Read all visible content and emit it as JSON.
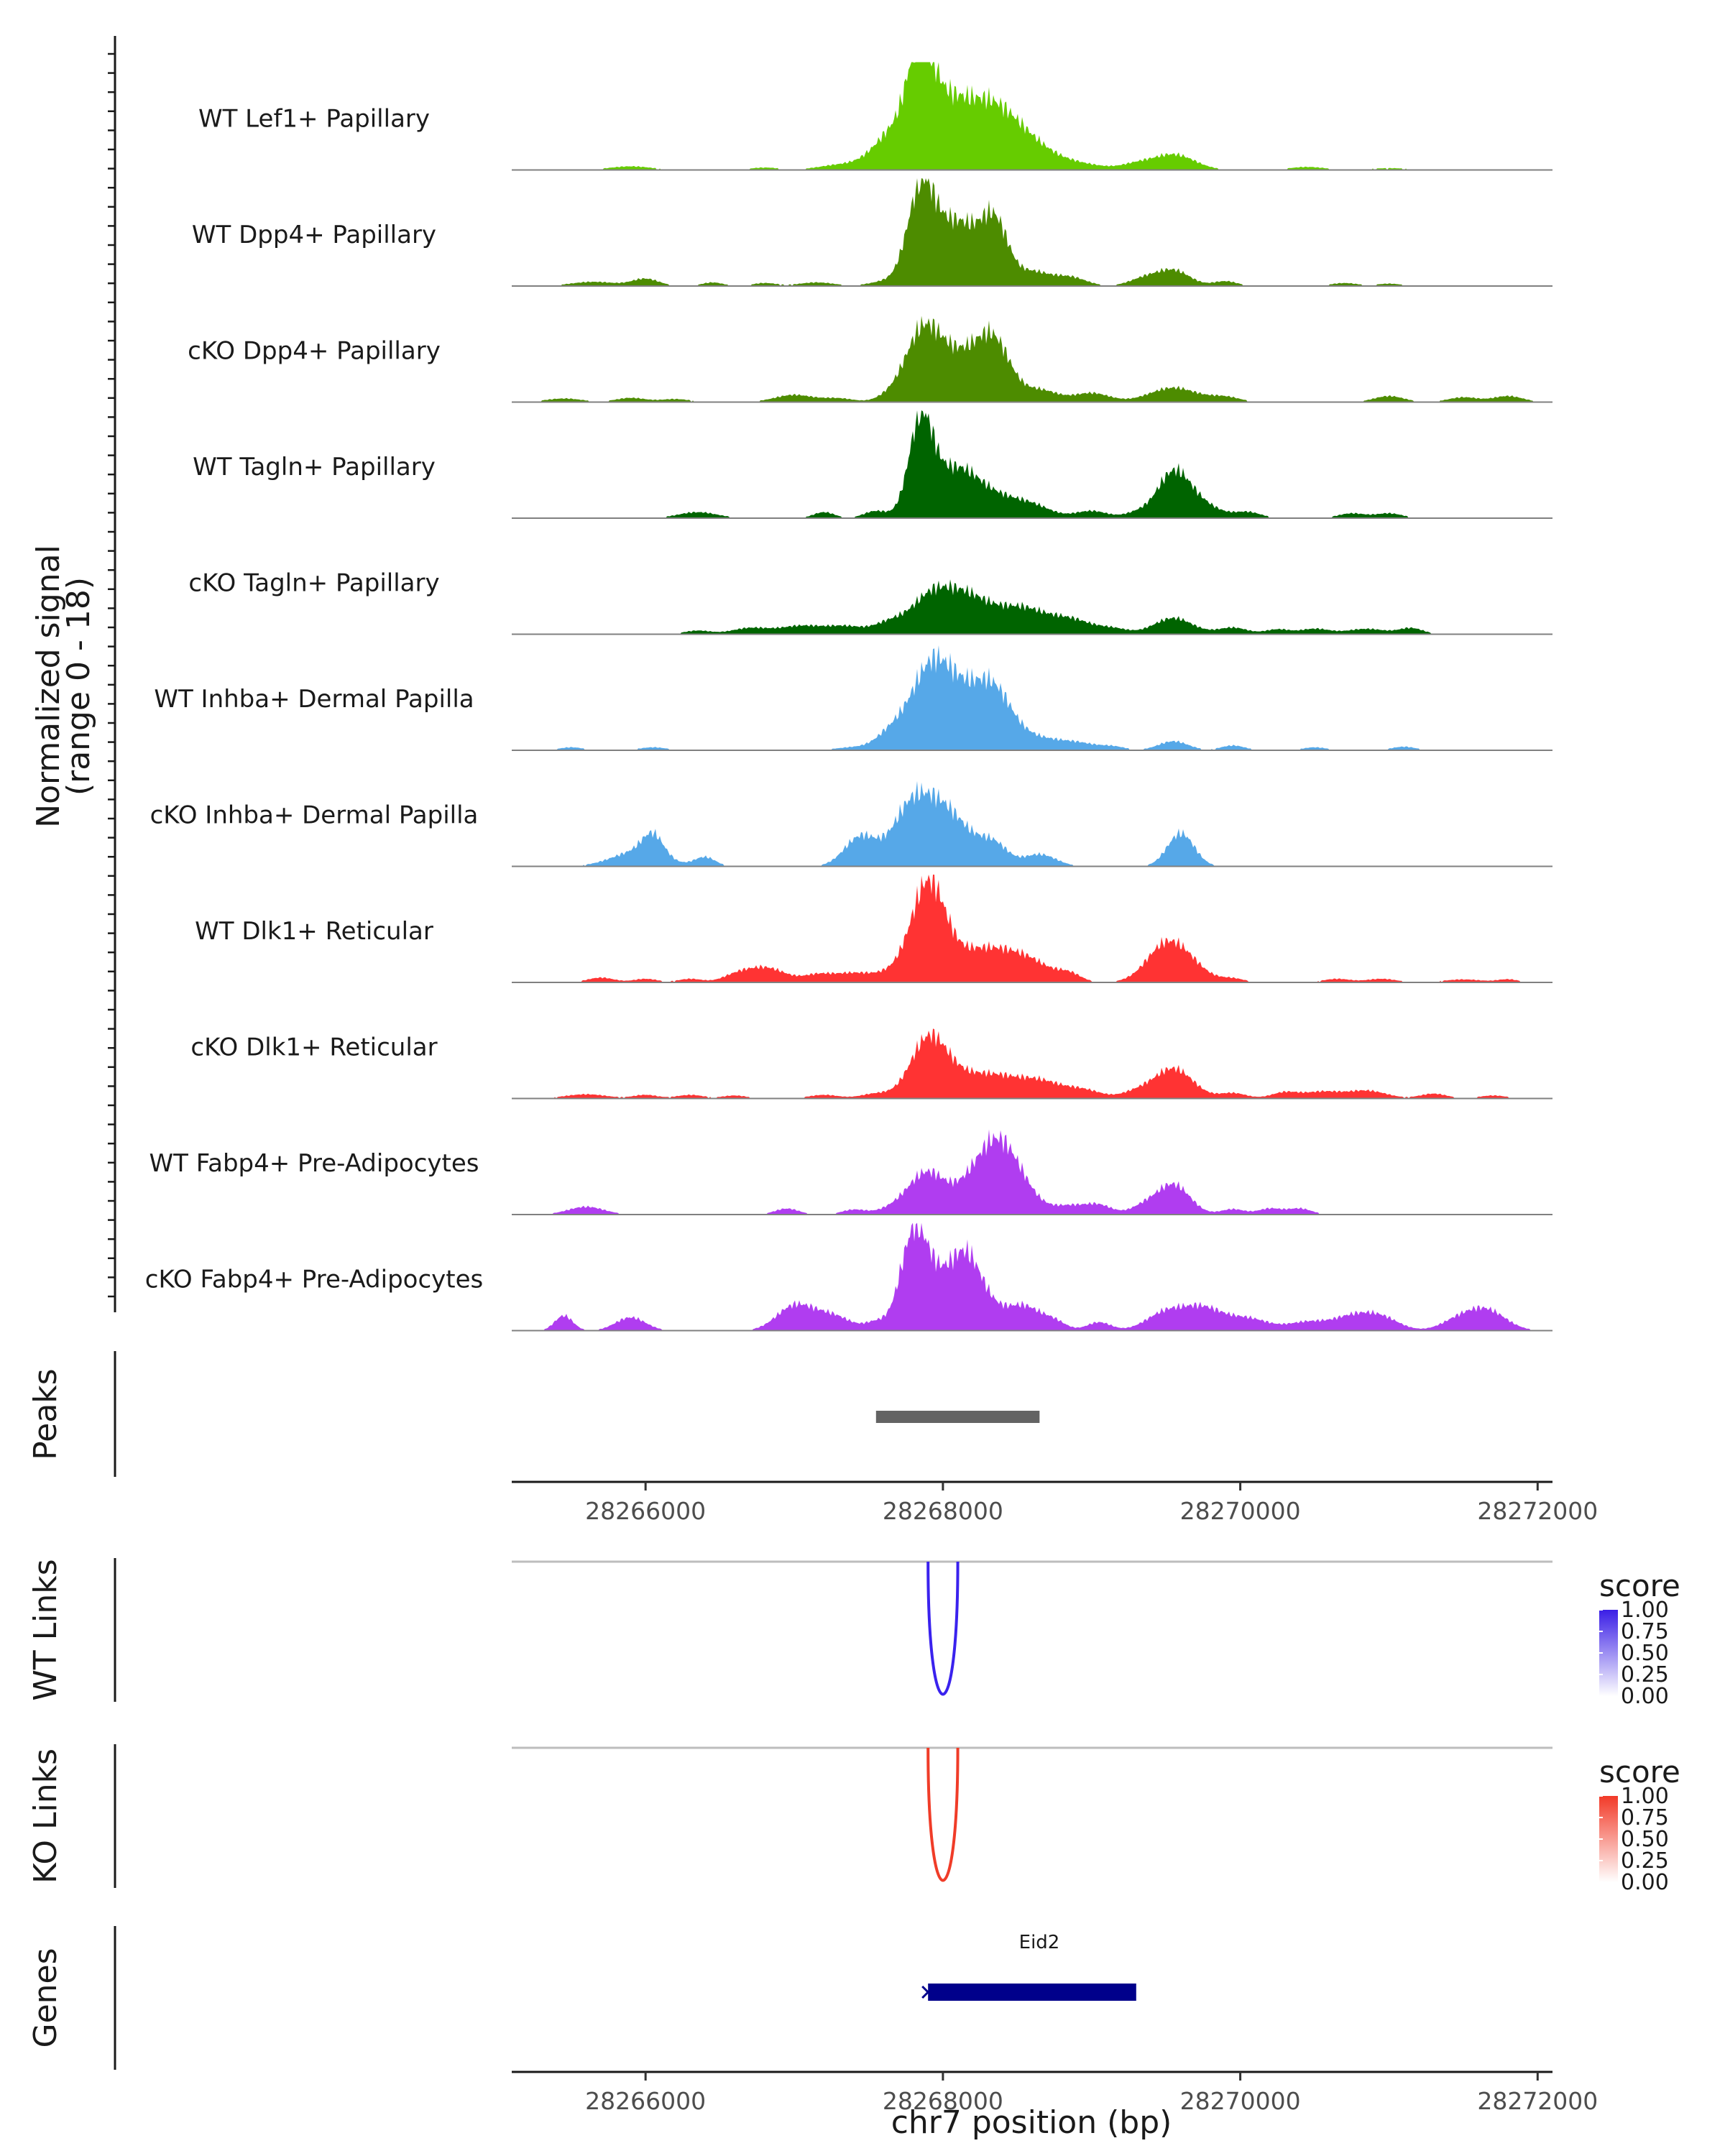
{
  "chart_data": {
    "type": "area",
    "title": "",
    "xlabel": "chr7 position (bp)",
    "xlim": [
      28265100,
      28272100
    ],
    "x_ticks": [
      28266000,
      28268000,
      28270000,
      28272000
    ],
    "x_tick_labels": [
      "28266000",
      "28268000",
      "28270000",
      "28272000"
    ],
    "coverage_ylabel": "Normalized signal",
    "coverage_yrange_label": "(range 0 - 18)",
    "ylim": [
      0,
      18
    ],
    "peaks_label": "Peaks",
    "peaks": [
      {
        "start": 28267550,
        "end": 28268650
      }
    ],
    "series": [
      {
        "name": "WT Lef1+ Papillary",
        "color": "#66cc00",
        "peaks": [
          [
            28265900,
            0.6,
            140
          ],
          [
            28266800,
            0.4,
            100
          ],
          [
            28267300,
            0.8,
            140
          ],
          [
            28267850,
            14.5,
            80
          ],
          [
            28267700,
            7,
            150
          ],
          [
            28268000,
            8,
            130
          ],
          [
            28268200,
            6,
            160
          ],
          [
            28268350,
            5.5,
            150
          ],
          [
            28268550,
            4,
            160
          ],
          [
            28268850,
            1.2,
            200
          ],
          [
            28269550,
            2.6,
            140
          ],
          [
            28269300,
            0.8,
            100
          ],
          [
            28270450,
            0.5,
            120
          ],
          [
            28271000,
            0.3,
            150
          ]
        ]
      },
      {
        "name": "WT Dpp4+ Papillary",
        "color": "#4d8c00",
        "peaks": [
          [
            28265650,
            0.7,
            150
          ],
          [
            28266000,
            1.2,
            90
          ],
          [
            28266450,
            0.6,
            70
          ],
          [
            28266800,
            0.5,
            80
          ],
          [
            28267150,
            0.6,
            120
          ],
          [
            28267600,
            0.7,
            100
          ],
          [
            28267850,
            14,
            90
          ],
          [
            28268000,
            6,
            140
          ],
          [
            28268150,
            6.5,
            120
          ],
          [
            28268350,
            10,
            90
          ],
          [
            28268600,
            2.3,
            110
          ],
          [
            28268850,
            1.5,
            110
          ],
          [
            28269350,
            1.2,
            100
          ],
          [
            28269550,
            2.6,
            110
          ],
          [
            28269900,
            0.8,
            80
          ],
          [
            28270700,
            0.5,
            90
          ],
          [
            28271000,
            0.4,
            80
          ]
        ]
      },
      {
        "name": "cKO Dpp4+ Papillary",
        "color": "#4d8c00",
        "peaks": [
          [
            28265450,
            0.6,
            120
          ],
          [
            28265900,
            0.7,
            100
          ],
          [
            28266200,
            0.5,
            100
          ],
          [
            28267000,
            1.2,
            130
          ],
          [
            28267300,
            0.6,
            100
          ],
          [
            28267650,
            1.0,
            90
          ],
          [
            28267850,
            9,
            110
          ],
          [
            28268000,
            6,
            140
          ],
          [
            28268200,
            4.5,
            130
          ],
          [
            28268350,
            8.5,
            110
          ],
          [
            28268650,
            2,
            120
          ],
          [
            28269000,
            1.5,
            120
          ],
          [
            28269550,
            2.4,
            160
          ],
          [
            28269900,
            0.8,
            100
          ],
          [
            28271000,
            1.0,
            100
          ],
          [
            28271500,
            0.8,
            100
          ],
          [
            28271800,
            1,
            100
          ]
        ]
      },
      {
        "name": "WT Tagln+ Papillary",
        "color": "#006400",
        "peaks": [
          [
            28266350,
            1,
            130
          ],
          [
            28267200,
            1,
            70
          ],
          [
            28267550,
            1.2,
            80
          ],
          [
            28267850,
            15,
            80
          ],
          [
            28268000,
            5,
            130
          ],
          [
            28268150,
            4.5,
            120
          ],
          [
            28268350,
            3.2,
            140
          ],
          [
            28268600,
            2,
            130
          ],
          [
            28269000,
            1.2,
            110
          ],
          [
            28269300,
            0.8,
            80
          ],
          [
            28269550,
            7.5,
            110
          ],
          [
            28269750,
            2,
            120
          ],
          [
            28270050,
            1,
            90
          ],
          [
            28270750,
            0.8,
            90
          ],
          [
            28271000,
            0.8,
            90
          ]
        ]
      },
      {
        "name": "cKO Tagln+ Papillary",
        "color": "#006400",
        "peaks": [
          [
            28266350,
            0.6,
            90
          ],
          [
            28266700,
            1.0,
            120
          ],
          [
            28267050,
            1.4,
            150
          ],
          [
            28267350,
            1.2,
            120
          ],
          [
            28267650,
            2,
            110
          ],
          [
            28267900,
            5,
            120
          ],
          [
            28268100,
            5.2,
            140
          ],
          [
            28268300,
            3,
            150
          ],
          [
            28268550,
            3.5,
            140
          ],
          [
            28268850,
            2.5,
            150
          ],
          [
            28269150,
            0.8,
            100
          ],
          [
            28269550,
            2.7,
            130
          ],
          [
            28269950,
            1.1,
            100
          ],
          [
            28270250,
            0.8,
            80
          ],
          [
            28270500,
            0.9,
            100
          ],
          [
            28270850,
            0.9,
            130
          ],
          [
            28271150,
            1,
            80
          ]
        ]
      },
      {
        "name": "WT Inhba+ Dermal Papilla",
        "color": "#56a8e8",
        "peaks": [
          [
            28265500,
            0.5,
            80
          ],
          [
            28266050,
            0.5,
            90
          ],
          [
            28267400,
            0.5,
            120
          ],
          [
            28267650,
            2.6,
            100
          ],
          [
            28267900,
            11.5,
            130
          ],
          [
            28268050,
            5,
            130
          ],
          [
            28268200,
            5,
            140
          ],
          [
            28268350,
            7.5,
            120
          ],
          [
            28268600,
            2,
            150
          ],
          [
            28268900,
            1.2,
            140
          ],
          [
            28269150,
            0.5,
            80
          ],
          [
            28269550,
            1.5,
            100
          ],
          [
            28269950,
            0.8,
            80
          ],
          [
            28270500,
            0.5,
            80
          ],
          [
            28271100,
            0.6,
            80
          ]
        ]
      },
      {
        "name": "cKO Inhba+ Dermal Papilla",
        "color": "#56a8e8",
        "peaks": [
          [
            28265950,
            2.5,
            170
          ],
          [
            28266050,
            3.5,
            70
          ],
          [
            28266400,
            1.5,
            70
          ],
          [
            28267450,
            5,
            110
          ],
          [
            28267750,
            5,
            110
          ],
          [
            28267900,
            8,
            150
          ],
          [
            28268100,
            5,
            160
          ],
          [
            28268350,
            2.8,
            90
          ],
          [
            28268650,
            2.0,
            110
          ],
          [
            28269600,
            5.5,
            90
          ]
        ]
      },
      {
        "name": "WT Dlk1+ Reticular",
        "color": "#ff3333",
        "peaks": [
          [
            28265700,
            0.8,
            90
          ],
          [
            28266000,
            0.6,
            80
          ],
          [
            28266300,
            0.6,
            80
          ],
          [
            28266600,
            0.8,
            90
          ],
          [
            28266800,
            2.5,
            140
          ],
          [
            28267150,
            0.9,
            90
          ],
          [
            28267400,
            1.6,
            160
          ],
          [
            28267700,
            1.5,
            110
          ],
          [
            28267900,
            15.5,
            110
          ],
          [
            28268100,
            3.2,
            150
          ],
          [
            28268350,
            4.5,
            160
          ],
          [
            28268600,
            2.8,
            140
          ],
          [
            28268850,
            1.3,
            80
          ],
          [
            28269450,
            1.1,
            100
          ],
          [
            28269550,
            6.2,
            150
          ],
          [
            28269950,
            0.6,
            80
          ],
          [
            28270650,
            0.6,
            90
          ],
          [
            28270950,
            0.6,
            100
          ],
          [
            28271500,
            0.5,
            130
          ],
          [
            28271800,
            0.5,
            70
          ]
        ]
      },
      {
        "name": "cKO Dlk1+ Reticular",
        "color": "#ff3333",
        "peaks": [
          [
            28265600,
            0.7,
            140
          ],
          [
            28266000,
            0.6,
            80
          ],
          [
            28266300,
            0.6,
            90
          ],
          [
            28266600,
            0.5,
            80
          ],
          [
            28267200,
            0.6,
            100
          ],
          [
            28267550,
            0.8,
            100
          ],
          [
            28267900,
            9.5,
            120
          ],
          [
            28268100,
            2.8,
            140
          ],
          [
            28268350,
            3.2,
            150
          ],
          [
            28268650,
            2.8,
            150
          ],
          [
            28268950,
            1.3,
            120
          ],
          [
            28269300,
            1,
            100
          ],
          [
            28269550,
            5,
            130
          ],
          [
            28269950,
            0.9,
            90
          ],
          [
            28270300,
            1,
            90
          ],
          [
            28270550,
            1.1,
            120
          ],
          [
            28270850,
            1.3,
            130
          ],
          [
            28271300,
            0.8,
            90
          ],
          [
            28271700,
            0.5,
            90
          ]
        ]
      },
      {
        "name": "WT Fabp4+ Pre-Adipocytes",
        "color": "#b03df0",
        "peaks": [
          [
            28265600,
            1.3,
            120
          ],
          [
            28266950,
            1,
            80
          ],
          [
            28267400,
            0.8,
            80
          ],
          [
            28267750,
            2,
            130
          ],
          [
            28267900,
            5.5,
            110
          ],
          [
            28268150,
            3.3,
            140
          ],
          [
            28268350,
            9.5,
            130
          ],
          [
            28268500,
            4,
            130
          ],
          [
            28268850,
            1.4,
            110
          ],
          [
            28269050,
            1.5,
            90
          ],
          [
            28269350,
            1.3,
            90
          ],
          [
            28269550,
            5,
            110
          ],
          [
            28269950,
            0.9,
            80
          ],
          [
            28270200,
            1,
            80
          ],
          [
            28270400,
            1,
            80
          ]
        ]
      },
      {
        "name": "cKO Fabp4+ Pre-Adipocytes",
        "color": "#b03df0",
        "peaks": [
          [
            28265450,
            2.5,
            60
          ],
          [
            28265900,
            2.2,
            100
          ],
          [
            28267000,
            4,
            120
          ],
          [
            28267250,
            2.5,
            130
          ],
          [
            28267550,
            1.3,
            70
          ],
          [
            28267800,
            14,
            90
          ],
          [
            28267950,
            7,
            120
          ],
          [
            28268150,
            10,
            100
          ],
          [
            28268300,
            3.5,
            120
          ],
          [
            28268550,
            3.8,
            110
          ],
          [
            28268750,
            1.4,
            80
          ],
          [
            28269050,
            1.4,
            80
          ],
          [
            28269500,
            3,
            130
          ],
          [
            28269750,
            3.5,
            130
          ],
          [
            28270050,
            2,
            140
          ],
          [
            28270450,
            1.4,
            130
          ],
          [
            28270750,
            2.2,
            130
          ],
          [
            28270950,
            2,
            120
          ],
          [
            28271450,
            1.4,
            110
          ],
          [
            28271650,
            3.5,
            130
          ]
        ]
      }
    ],
    "links": [
      {
        "name": "WT Links",
        "color": "#3a22ee",
        "start": 28267900,
        "end": 28268100,
        "score": 1.0,
        "legend_title": "score",
        "legend_ticks": [
          "1.00",
          "0.75",
          "0.50",
          "0.25",
          "0.00"
        ],
        "legend_high": "#3a1ee6"
      },
      {
        "name": "KO Links",
        "color": "#f03c28",
        "start": 28267900,
        "end": 28268100,
        "score": 1.0,
        "legend_title": "score",
        "legend_ticks": [
          "1.00",
          "0.75",
          "0.50",
          "0.25",
          "0.00"
        ],
        "legend_high": "#f23a28"
      }
    ],
    "genes_label": "Genes",
    "genes": [
      {
        "name": "Eid2",
        "start": 28267900,
        "end": 28269300,
        "strand": "-",
        "color": "#00008b"
      }
    ]
  }
}
